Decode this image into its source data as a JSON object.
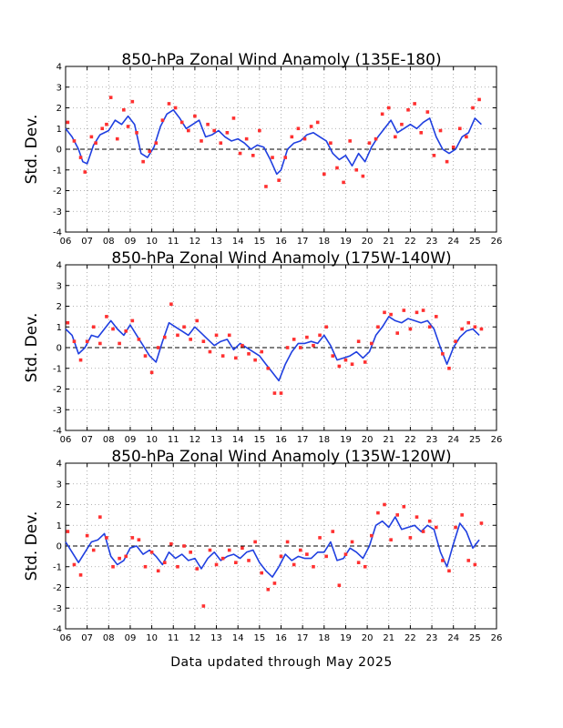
{
  "footer": "Data updated through May 2025",
  "colors": {
    "line": "#1f3fe0",
    "points": "#ff3030",
    "zero_line": "#000000",
    "grid": "#9a9a9a"
  },
  "chart_data": [
    {
      "type": "line",
      "title": "850-hPa Zonal Wind Anamoly (135E-180)",
      "ylabel": "Std. Dev.",
      "xlabel": "",
      "xlim": [
        2006,
        2026
      ],
      "ylim": [
        -4,
        4
      ],
      "x_tick_labels": [
        "06",
        "07",
        "08",
        "09",
        "10",
        "11",
        "12",
        "13",
        "14",
        "15",
        "16",
        "17",
        "18",
        "19",
        "20",
        "21",
        "22",
        "23",
        "24",
        "25",
        "26"
      ],
      "y_tick_labels": [
        "-4",
        "-3",
        "-2",
        "-1",
        "0",
        "1",
        "2",
        "3",
        "4"
      ],
      "grid": true,
      "zero_line": true,
      "series": [
        {
          "kind": "line",
          "x": [
            2006.0,
            2006.3,
            2006.6,
            2006.8,
            2007.0,
            2007.3,
            2007.6,
            2008.0,
            2008.3,
            2008.6,
            2008.9,
            2009.2,
            2009.5,
            2009.8,
            2010.1,
            2010.4,
            2010.7,
            2011.0,
            2011.3,
            2011.6,
            2011.9,
            2012.2,
            2012.5,
            2012.8,
            2013.1,
            2013.4,
            2013.7,
            2014.0,
            2014.3,
            2014.6,
            2014.9,
            2015.2,
            2015.5,
            2015.8,
            2016.0,
            2016.3,
            2016.6,
            2016.9,
            2017.2,
            2017.5,
            2017.8,
            2018.1,
            2018.4,
            2018.7,
            2019.0,
            2019.3,
            2019.6,
            2019.9,
            2020.2,
            2020.5,
            2020.8,
            2021.1,
            2021.4,
            2021.7,
            2022.0,
            2022.3,
            2022.6,
            2022.9,
            2023.2,
            2023.5,
            2023.8,
            2024.1,
            2024.4,
            2024.7,
            2025.0,
            2025.3
          ],
          "y": [
            1.0,
            0.6,
            0.0,
            -0.6,
            -0.7,
            0.2,
            0.7,
            0.9,
            1.4,
            1.2,
            1.6,
            1.2,
            -0.2,
            -0.4,
            0.1,
            1.1,
            1.7,
            1.9,
            1.5,
            1.0,
            1.2,
            1.4,
            0.6,
            0.7,
            0.9,
            0.6,
            0.4,
            0.5,
            0.3,
            0.0,
            0.2,
            0.1,
            -0.5,
            -1.2,
            -1.0,
            0.0,
            0.3,
            0.4,
            0.7,
            0.8,
            0.6,
            0.4,
            -0.2,
            -0.5,
            -0.3,
            -0.8,
            -0.2,
            -0.6,
            0.1,
            0.6,
            1.0,
            1.4,
            0.8,
            1.0,
            1.2,
            1.0,
            1.3,
            1.5,
            0.6,
            0.0,
            -0.2,
            0.0,
            0.6,
            0.8,
            1.5,
            1.2
          ]
        },
        {
          "kind": "scatter",
          "x": [
            2006.1,
            2006.4,
            2006.7,
            2006.9,
            2007.2,
            2007.4,
            2007.7,
            2007.9,
            2008.1,
            2008.4,
            2008.7,
            2008.9,
            2009.1,
            2009.3,
            2009.6,
            2009.9,
            2010.2,
            2010.5,
            2010.8,
            2011.1,
            2011.4,
            2011.7,
            2012.0,
            2012.3,
            2012.6,
            2012.9,
            2013.2,
            2013.5,
            2013.8,
            2014.1,
            2014.4,
            2014.7,
            2015.0,
            2015.3,
            2015.6,
            2015.9,
            2016.2,
            2016.5,
            2016.8,
            2017.1,
            2017.4,
            2017.7,
            2018.0,
            2018.3,
            2018.6,
            2018.9,
            2019.2,
            2019.5,
            2019.8,
            2020.1,
            2020.4,
            2020.7,
            2021.0,
            2021.3,
            2021.6,
            2021.9,
            2022.2,
            2022.5,
            2022.8,
            2023.1,
            2023.4,
            2023.7,
            2024.0,
            2024.3,
            2024.6,
            2024.9,
            2025.2
          ],
          "y": [
            1.3,
            0.4,
            -0.4,
            -1.1,
            0.6,
            0.3,
            1.0,
            1.2,
            2.5,
            0.5,
            1.9,
            1.1,
            2.3,
            0.8,
            -0.6,
            -0.1,
            0.3,
            1.4,
            2.2,
            2.0,
            1.3,
            0.9,
            1.6,
            0.4,
            1.2,
            0.9,
            0.3,
            0.8,
            1.5,
            -0.2,
            0.5,
            -0.3,
            0.9,
            -1.8,
            -0.4,
            -1.5,
            -0.4,
            0.6,
            1.0,
            0.5,
            1.1,
            1.3,
            -1.2,
            0.3,
            -0.9,
            -1.6,
            0.4,
            -1.0,
            -1.3,
            0.3,
            0.5,
            1.7,
            2.0,
            0.6,
            1.2,
            1.9,
            2.2,
            0.8,
            1.8,
            -0.3,
            0.9,
            -0.6,
            0.1,
            1.0,
            0.6,
            2.0,
            2.4
          ]
        }
      ]
    },
    {
      "type": "line",
      "title": "850-hPa Zonal Wind Anamoly (175W-140W)",
      "ylabel": "Std. Dev.",
      "xlabel": "",
      "xlim": [
        2006,
        2026
      ],
      "ylim": [
        -4,
        4
      ],
      "x_tick_labels": [
        "06",
        "07",
        "08",
        "09",
        "10",
        "11",
        "12",
        "13",
        "14",
        "15",
        "16",
        "17",
        "18",
        "19",
        "20",
        "21",
        "22",
        "23",
        "24",
        "25",
        "26"
      ],
      "y_tick_labels": [
        "-4",
        "-3",
        "-2",
        "-1",
        "0",
        "1",
        "2",
        "3",
        "4"
      ],
      "grid": true,
      "zero_line": true,
      "series": [
        {
          "kind": "line",
          "x": [
            2006.0,
            2006.3,
            2006.6,
            2006.9,
            2007.2,
            2007.5,
            2007.8,
            2008.1,
            2008.4,
            2008.7,
            2009.0,
            2009.3,
            2009.6,
            2009.9,
            2010.2,
            2010.5,
            2010.8,
            2011.1,
            2011.4,
            2011.7,
            2012.0,
            2012.3,
            2012.6,
            2012.9,
            2013.2,
            2013.5,
            2013.8,
            2014.1,
            2014.4,
            2014.7,
            2015.0,
            2015.3,
            2015.6,
            2015.9,
            2016.2,
            2016.5,
            2016.8,
            2017.1,
            2017.4,
            2017.7,
            2018.0,
            2018.3,
            2018.6,
            2018.9,
            2019.2,
            2019.5,
            2019.8,
            2020.1,
            2020.4,
            2020.7,
            2021.0,
            2021.3,
            2021.6,
            2021.9,
            2022.2,
            2022.5,
            2022.8,
            2023.1,
            2023.4,
            2023.7,
            2024.0,
            2024.3,
            2024.6,
            2024.9,
            2025.2
          ],
          "y": [
            0.9,
            0.6,
            -0.3,
            0.0,
            0.6,
            0.5,
            0.9,
            1.3,
            0.9,
            0.6,
            1.1,
            0.6,
            0.1,
            -0.4,
            -0.7,
            0.3,
            1.2,
            1.0,
            0.8,
            0.6,
            1.0,
            0.7,
            0.4,
            0.1,
            0.3,
            0.4,
            -0.1,
            0.2,
            0.0,
            -0.2,
            -0.4,
            -0.8,
            -1.2,
            -1.6,
            -0.8,
            -0.2,
            0.2,
            0.2,
            0.3,
            0.2,
            0.6,
            0.1,
            -0.6,
            -0.5,
            -0.4,
            -0.2,
            -0.5,
            -0.2,
            0.6,
            1.0,
            1.5,
            1.3,
            1.2,
            1.4,
            1.3,
            1.2,
            1.3,
            0.9,
            0.0,
            -0.8,
            0.0,
            0.5,
            0.8,
            0.9,
            0.6
          ]
        },
        {
          "kind": "scatter",
          "x": [
            2006.1,
            2006.4,
            2006.7,
            2007.0,
            2007.3,
            2007.6,
            2007.9,
            2008.2,
            2008.5,
            2008.8,
            2009.1,
            2009.4,
            2009.7,
            2010.0,
            2010.3,
            2010.6,
            2010.9,
            2011.2,
            2011.5,
            2011.8,
            2012.1,
            2012.4,
            2012.7,
            2013.0,
            2013.3,
            2013.6,
            2013.9,
            2014.2,
            2014.5,
            2014.8,
            2015.1,
            2015.4,
            2015.7,
            2016.0,
            2016.3,
            2016.6,
            2016.9,
            2017.2,
            2017.5,
            2017.8,
            2018.1,
            2018.4,
            2018.7,
            2019.0,
            2019.3,
            2019.6,
            2019.9,
            2020.2,
            2020.5,
            2020.8,
            2021.1,
            2021.4,
            2021.7,
            2022.0,
            2022.3,
            2022.6,
            2022.9,
            2023.2,
            2023.5,
            2023.8,
            2024.1,
            2024.4,
            2024.7,
            2025.0,
            2025.3
          ],
          "y": [
            1.2,
            0.3,
            -0.6,
            0.3,
            1.0,
            0.2,
            1.5,
            0.9,
            0.2,
            0.8,
            1.3,
            0.4,
            -0.4,
            -1.2,
            0.0,
            0.5,
            2.1,
            0.6,
            1.0,
            0.4,
            1.3,
            0.3,
            -0.2,
            0.6,
            -0.4,
            0.6,
            -0.5,
            0.1,
            -0.3,
            -0.6,
            -0.2,
            -1.0,
            -2.2,
            -2.2,
            0.0,
            0.4,
            0.0,
            0.5,
            0.1,
            0.6,
            1.0,
            -0.4,
            -0.9,
            -0.6,
            -0.8,
            0.3,
            -0.7,
            0.2,
            1.0,
            1.7,
            1.6,
            0.7,
            1.8,
            0.9,
            1.7,
            1.8,
            1.0,
            1.5,
            -0.3,
            -1.0,
            0.3,
            0.9,
            1.2,
            1.0,
            0.9
          ]
        }
      ]
    },
    {
      "type": "line",
      "title": "850-hPa Zonal Wind Anamoly (135W-120W)",
      "ylabel": "Std. Dev.",
      "xlabel": "",
      "xlim": [
        2006,
        2026
      ],
      "ylim": [
        -4,
        4
      ],
      "x_tick_labels": [
        "06",
        "07",
        "08",
        "09",
        "10",
        "11",
        "12",
        "13",
        "14",
        "15",
        "16",
        "17",
        "18",
        "19",
        "20",
        "21",
        "22",
        "23",
        "24",
        "25",
        "26"
      ],
      "y_tick_labels": [
        "-4",
        "-3",
        "-2",
        "-1",
        "0",
        "1",
        "2",
        "3",
        "4"
      ],
      "grid": true,
      "zero_line": true,
      "series": [
        {
          "kind": "line",
          "x": [
            2006.0,
            2006.3,
            2006.6,
            2006.9,
            2007.2,
            2007.5,
            2007.8,
            2008.1,
            2008.4,
            2008.7,
            2009.0,
            2009.3,
            2009.6,
            2009.9,
            2010.2,
            2010.5,
            2010.8,
            2011.1,
            2011.4,
            2011.7,
            2012.0,
            2012.3,
            2012.6,
            2012.9,
            2013.2,
            2013.5,
            2013.8,
            2014.1,
            2014.4,
            2014.7,
            2015.0,
            2015.3,
            2015.6,
            2015.9,
            2016.2,
            2016.5,
            2016.8,
            2017.1,
            2017.4,
            2017.7,
            2018.0,
            2018.3,
            2018.6,
            2018.9,
            2019.2,
            2019.5,
            2019.8,
            2020.1,
            2020.4,
            2020.7,
            2021.0,
            2021.3,
            2021.6,
            2021.9,
            2022.2,
            2022.5,
            2022.8,
            2023.1,
            2023.4,
            2023.7,
            2024.0,
            2024.3,
            2024.6,
            2024.9,
            2025.2
          ],
          "y": [
            0.2,
            -0.3,
            -0.8,
            -0.3,
            0.2,
            0.3,
            0.6,
            -0.5,
            -0.9,
            -0.7,
            -0.1,
            0.0,
            -0.4,
            -0.2,
            -0.5,
            -0.9,
            -0.3,
            -0.6,
            -0.4,
            -0.7,
            -0.6,
            -1.1,
            -0.6,
            -0.3,
            -0.7,
            -0.5,
            -0.4,
            -0.6,
            -0.3,
            -0.2,
            -0.8,
            -1.2,
            -1.5,
            -1.0,
            -0.4,
            -0.7,
            -0.5,
            -0.6,
            -0.6,
            -0.3,
            -0.3,
            0.2,
            -0.7,
            -0.6,
            -0.1,
            -0.3,
            -0.6,
            0.0,
            1.0,
            1.2,
            0.9,
            1.4,
            0.8,
            0.9,
            1.0,
            0.7,
            1.0,
            0.8,
            -0.3,
            -1.0,
            0.1,
            1.1,
            0.7,
            -0.1,
            0.3
          ]
        },
        {
          "kind": "scatter",
          "x": [
            2006.1,
            2006.4,
            2006.7,
            2007.0,
            2007.3,
            2007.6,
            2007.9,
            2008.2,
            2008.5,
            2008.8,
            2009.1,
            2009.4,
            2009.7,
            2010.0,
            2010.3,
            2010.6,
            2010.9,
            2011.2,
            2011.5,
            2011.8,
            2012.1,
            2012.4,
            2012.7,
            2013.0,
            2013.3,
            2013.6,
            2013.9,
            2014.2,
            2014.5,
            2014.8,
            2015.1,
            2015.4,
            2015.7,
            2016.0,
            2016.3,
            2016.6,
            2016.9,
            2017.2,
            2017.5,
            2017.8,
            2018.1,
            2018.4,
            2018.7,
            2019.0,
            2019.3,
            2019.6,
            2019.9,
            2020.2,
            2020.5,
            2020.8,
            2021.1,
            2021.4,
            2021.7,
            2022.0,
            2022.3,
            2022.6,
            2022.9,
            2023.2,
            2023.5,
            2023.8,
            2024.1,
            2024.4,
            2024.7,
            2025.0,
            2025.3
          ],
          "y": [
            0.7,
            -0.9,
            -1.4,
            0.5,
            -0.2,
            1.4,
            0.4,
            -1.0,
            -0.6,
            -0.5,
            0.4,
            0.3,
            -1.0,
            -0.3,
            -1.2,
            -0.8,
            0.1,
            -1.0,
            0.0,
            -0.3,
            -1.1,
            -2.9,
            -0.2,
            -0.9,
            -0.6,
            -0.2,
            -0.8,
            -0.1,
            -0.7,
            0.2,
            -1.3,
            -2.1,
            -1.8,
            -0.5,
            0.2,
            -0.9,
            -0.2,
            -0.4,
            -1.0,
            0.4,
            -0.5,
            0.7,
            -1.9,
            -0.4,
            0.2,
            -0.8,
            -1.0,
            0.5,
            1.6,
            2.0,
            0.3,
            1.5,
            1.9,
            0.4,
            1.4,
            0.7,
            1.2,
            0.9,
            -0.7,
            -1.2,
            0.9,
            1.5,
            -0.7,
            -0.9,
            1.1
          ]
        }
      ]
    }
  ]
}
